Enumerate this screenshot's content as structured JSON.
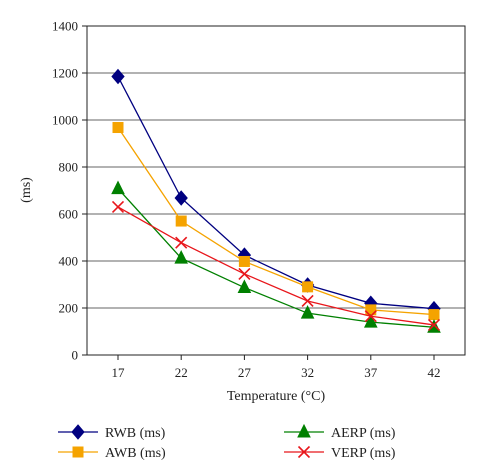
{
  "chart_data": {
    "type": "line",
    "x": [
      17,
      22,
      27,
      32,
      37,
      42
    ],
    "xlabel": "Temperature (°C)",
    "ylabel": "(ms)",
    "ylim": [
      0,
      1400
    ],
    "yticks": [
      0,
      200,
      400,
      600,
      800,
      1000,
      1200,
      1400
    ],
    "grid": "horizontal",
    "legend_position": "bottom",
    "series": [
      {
        "name": "RWB (ms)",
        "values": [
          1185,
          668,
          425,
          298,
          220,
          197
        ],
        "color": "#000080",
        "marker": "diamond"
      },
      {
        "name": "AWB (ms)",
        "values": [
          968,
          570,
          398,
          290,
          192,
          172
        ],
        "color": "#F5A300",
        "marker": "square"
      },
      {
        "name": "AERP (ms)",
        "values": [
          708,
          412,
          287,
          178,
          140,
          118
        ],
        "color": "#008000",
        "marker": "triangle"
      },
      {
        "name": "VERP (ms)",
        "values": [
          630,
          478,
          345,
          230,
          165,
          128
        ],
        "color": "#E8161B",
        "marker": "x"
      }
    ]
  }
}
